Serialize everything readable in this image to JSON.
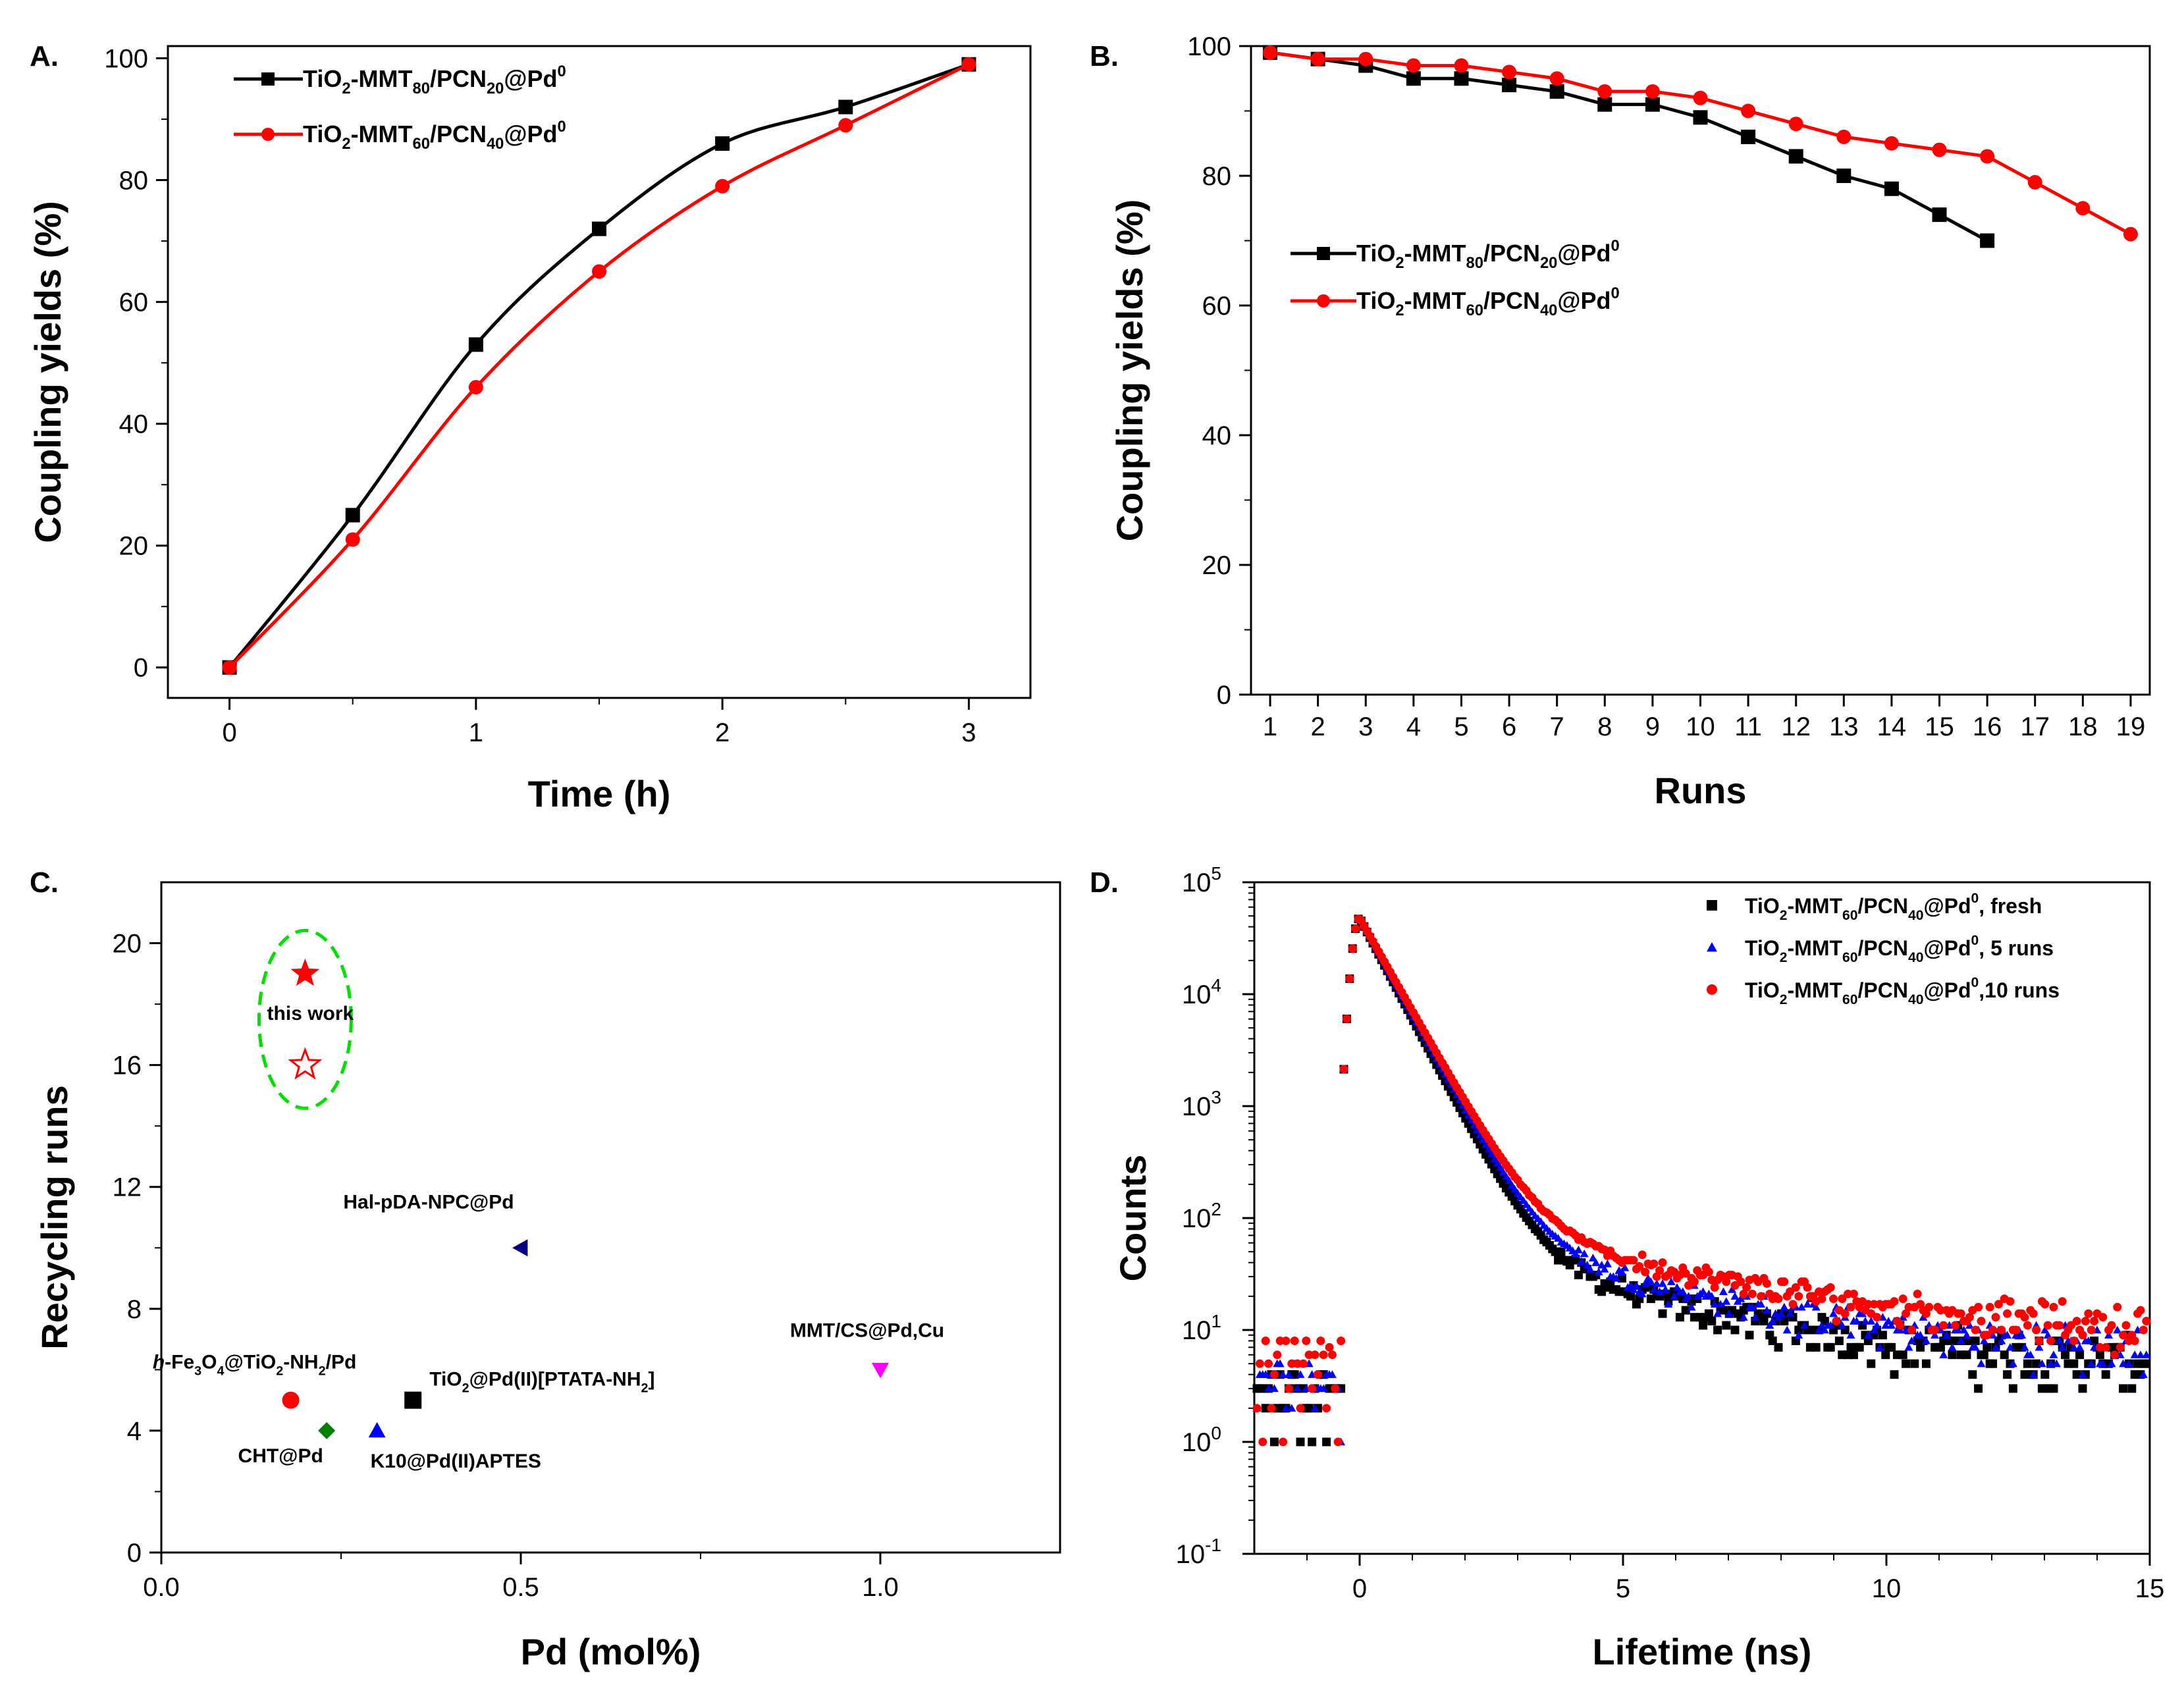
{
  "chart_data": [
    {
      "panel": "A.",
      "type": "line",
      "xlabel": "Time (h)",
      "ylabel": "Coupling yields (%)",
      "xlim": [
        -0.25,
        3.25
      ],
      "ylim": [
        -5,
        102
      ],
      "xticks": [
        0,
        1,
        2,
        3
      ],
      "yticks": [
        0,
        20,
        40,
        60,
        80,
        100
      ],
      "legend_position": "top-left",
      "series": [
        {
          "name": "TiO2-MMT80/PCN20@Pd0",
          "label_parts": [
            [
              "TiO",
              ""
            ],
            [
              "2",
              "sub"
            ],
            [
              "-MMT",
              ""
            ],
            [
              "80",
              "sub"
            ],
            [
              "/PCN",
              ""
            ],
            [
              "20",
              "sub"
            ],
            [
              "@Pd",
              ""
            ],
            [
              "0",
              "sup"
            ]
          ],
          "color": "#000000",
          "marker": "square",
          "smooth": true,
          "x": [
            0,
            0.5,
            1,
            1.5,
            2,
            2.5,
            3
          ],
          "y": [
            0,
            25,
            53,
            72,
            86,
            92,
            99
          ]
        },
        {
          "name": "TiO2-MMT60/PCN40@Pd0",
          "label_parts": [
            [
              "TiO",
              ""
            ],
            [
              "2",
              "sub"
            ],
            [
              "-MMT",
              ""
            ],
            [
              "60",
              "sub"
            ],
            [
              "/PCN",
              ""
            ],
            [
              "40",
              "sub"
            ],
            [
              "@Pd",
              ""
            ],
            [
              "0",
              "sup"
            ]
          ],
          "color": "#ff0000",
          "marker": "circle",
          "smooth": true,
          "x": [
            0,
            0.5,
            1,
            1.5,
            2,
            2.5,
            3
          ],
          "y": [
            0,
            21,
            46,
            65,
            79,
            89,
            99
          ]
        }
      ]
    },
    {
      "panel": "B.",
      "type": "line",
      "xlabel": "Runs",
      "ylabel": "Coupling yields (%)",
      "xlim": [
        0.6,
        19.4
      ],
      "ylim": [
        0,
        100
      ],
      "xticks": [
        1,
        2,
        3,
        4,
        5,
        6,
        7,
        8,
        9,
        10,
        11,
        12,
        13,
        14,
        15,
        16,
        17,
        18,
        19
      ],
      "yticks": [
        0,
        20,
        40,
        60,
        80,
        100
      ],
      "legend_position": "center-left",
      "series": [
        {
          "name": "TiO2-MMT80/PCN20@Pd0",
          "label_parts": [
            [
              "TiO",
              ""
            ],
            [
              "2",
              "sub"
            ],
            [
              "-MMT",
              ""
            ],
            [
              "80",
              "sub"
            ],
            [
              "/PCN",
              ""
            ],
            [
              "20",
              "sub"
            ],
            [
              "@Pd",
              ""
            ],
            [
              "0",
              "sup"
            ]
          ],
          "color": "#000000",
          "marker": "square",
          "smooth": false,
          "x": [
            1,
            2,
            3,
            4,
            5,
            6,
            7,
            8,
            9,
            10,
            11,
            12,
            13,
            14,
            15,
            16
          ],
          "y": [
            99,
            98,
            97,
            95,
            95,
            94,
            93,
            91,
            91,
            89,
            86,
            83,
            80,
            78,
            74,
            70
          ]
        },
        {
          "name": "TiO2-MMT60/PCN40@Pd0",
          "label_parts": [
            [
              "TiO",
              ""
            ],
            [
              "2",
              "sub"
            ],
            [
              "-MMT",
              ""
            ],
            [
              "60",
              "sub"
            ],
            [
              "/PCN",
              ""
            ],
            [
              "40",
              "sub"
            ],
            [
              "@Pd",
              ""
            ],
            [
              "0",
              "sup"
            ]
          ],
          "color": "#ff0000",
          "marker": "circle",
          "smooth": false,
          "x": [
            1,
            2,
            3,
            4,
            5,
            6,
            7,
            8,
            9,
            10,
            11,
            12,
            13,
            14,
            15,
            16,
            17,
            18,
            19
          ],
          "y": [
            99,
            98,
            98,
            97,
            97,
            96,
            95,
            93,
            93,
            92,
            90,
            88,
            86,
            85,
            84,
            83,
            79,
            75,
            71
          ]
        }
      ]
    },
    {
      "panel": "C.",
      "type": "scatter",
      "xlabel": "Pd (mol%)",
      "ylabel": "Recycling runs",
      "xlim": [
        0,
        1.25
      ],
      "ylim": [
        0,
        22
      ],
      "xticks": [
        0.0,
        0.5,
        1.0
      ],
      "xtick_labels": [
        "0.0",
        "0.5",
        "1.0"
      ],
      "yticks": [
        0,
        4,
        8,
        12,
        16,
        20
      ],
      "points": [
        {
          "label_parts": [
            [
              "this work",
              ""
            ]
          ],
          "x": 0.2,
          "y": 19,
          "marker": "star",
          "filled": true,
          "color": "#ff0000",
          "show_label": false
        },
        {
          "label_parts": [
            [
              "this work",
              ""
            ]
          ],
          "x": 0.2,
          "y": 16,
          "marker": "star",
          "filled": false,
          "color": "#ff0000",
          "show_label": false
        },
        {
          "label_parts": [
            [
              "Hal-pDA-NPC@Pd",
              ""
            ]
          ],
          "x": 0.5,
          "y": 10,
          "marker": "triangle-left",
          "filled": true,
          "color": "#000080",
          "show_label": true
        },
        {
          "label_parts": [
            [
              "h",
              "it"
            ],
            [
              "-Fe",
              ""
            ],
            [
              "3",
              "sub"
            ],
            [
              "O",
              ""
            ],
            [
              "4",
              "sub"
            ],
            [
              "@TiO",
              ""
            ],
            [
              "2",
              "sub"
            ],
            [
              "-NH",
              ""
            ],
            [
              "2",
              "sub"
            ],
            [
              "/Pd",
              ""
            ]
          ],
          "x": 0.18,
          "y": 5,
          "marker": "circle",
          "filled": true,
          "color": "#ff0000",
          "show_label": true
        },
        {
          "label_parts": [
            [
              "TiO",
              ""
            ],
            [
              "2",
              "sub"
            ],
            [
              "@Pd(II)[PTATA-NH",
              ""
            ],
            [
              "2",
              "sub"
            ],
            [
              "]",
              ""
            ]
          ],
          "x": 0.35,
          "y": 5,
          "marker": "square",
          "filled": true,
          "color": "#000000",
          "show_label": true
        },
        {
          "label_parts": [
            [
              "CHT@Pd",
              ""
            ]
          ],
          "x": 0.23,
          "y": 4,
          "marker": "diamond",
          "filled": true,
          "color": "#008000",
          "show_label": true
        },
        {
          "label_parts": [
            [
              "K10@Pd(II)APTES",
              ""
            ]
          ],
          "x": 0.3,
          "y": 4,
          "marker": "triangle-up",
          "filled": true,
          "color": "#0000ff",
          "show_label": true
        },
        {
          "label_parts": [
            [
              "MMT/CS@Pd,Cu",
              ""
            ]
          ],
          "x": 1.0,
          "y": 6,
          "marker": "triangle-down",
          "filled": true,
          "color": "#ff00ff",
          "show_label": true
        }
      ],
      "annotations": [
        {
          "text": "this work",
          "x": 0.2,
          "y": 17.7
        }
      ]
    },
    {
      "panel": "D.",
      "type": "scatter",
      "xlabel": "Lifetime (ns)",
      "ylabel": "Counts",
      "xlim": [
        -2,
        15
      ],
      "ylim_log10": [
        -1,
        5
      ],
      "xticks": [
        0,
        5,
        10,
        15
      ],
      "yticks_log10": [
        -1,
        0,
        1,
        2,
        3,
        4,
        5
      ],
      "ytick_labels": [
        [
          "10",
          "-1"
        ],
        [
          "10",
          "0"
        ],
        [
          "10",
          "1"
        ],
        [
          "10",
          "2"
        ],
        [
          "10",
          "3"
        ],
        [
          "10",
          "4"
        ],
        [
          "10",
          "5"
        ]
      ],
      "legend_position": "top-right",
      "series": [
        {
          "name": "TiO2-MMT60/PCN40@Pd0, fresh",
          "label_parts": [
            [
              "TiO",
              ""
            ],
            [
              "2",
              "sub"
            ],
            [
              "-MMT",
              ""
            ],
            [
              "60",
              "sub"
            ],
            [
              "/PCN",
              ""
            ],
            [
              "40",
              "sub"
            ],
            [
              "@Pd",
              ""
            ],
            [
              "0",
              "sup"
            ],
            [
              ", fresh",
              ""
            ]
          ],
          "color": "#000000",
          "marker": "square",
          "peak_counts": 48000,
          "tau_fast_ns": 0.48,
          "tau_slow_ns": 2.6,
          "slow_fraction": 0.0018,
          "background": 2.8
        },
        {
          "name": "TiO2-MMT60/PCN40@Pd0, 5 runs",
          "label_parts": [
            [
              "TiO",
              ""
            ],
            [
              "2",
              "sub"
            ],
            [
              "-MMT",
              ""
            ],
            [
              "60",
              "sub"
            ],
            [
              "/PCN",
              ""
            ],
            [
              "40",
              "sub"
            ],
            [
              "@Pd",
              ""
            ],
            [
              "0",
              "sup"
            ],
            [
              ", 5 runs",
              ""
            ]
          ],
          "color": "#0000ff",
          "marker": "triangle",
          "peak_counts": 48000,
          "tau_fast_ns": 0.5,
          "tau_slow_ns": 2.8,
          "slow_fraction": 0.0022,
          "background": 3.5
        },
        {
          "name": "TiO2-MMT60/PCN40@Pd0,10 runs",
          "label_parts": [
            [
              "TiO",
              ""
            ],
            [
              "2",
              "sub"
            ],
            [
              "-MMT",
              ""
            ],
            [
              "60",
              "sub"
            ],
            [
              "/PCN",
              ""
            ],
            [
              "40",
              "sub"
            ],
            [
              "@Pd",
              ""
            ],
            [
              "0",
              "sup"
            ],
            [
              ",10 runs",
              ""
            ]
          ],
          "color": "#ff0000",
          "marker": "circle",
          "peak_counts": 48000,
          "tau_fast_ns": 0.52,
          "tau_slow_ns": 3.0,
          "slow_fraction": 0.0028,
          "background": 6.5
        }
      ]
    }
  ]
}
